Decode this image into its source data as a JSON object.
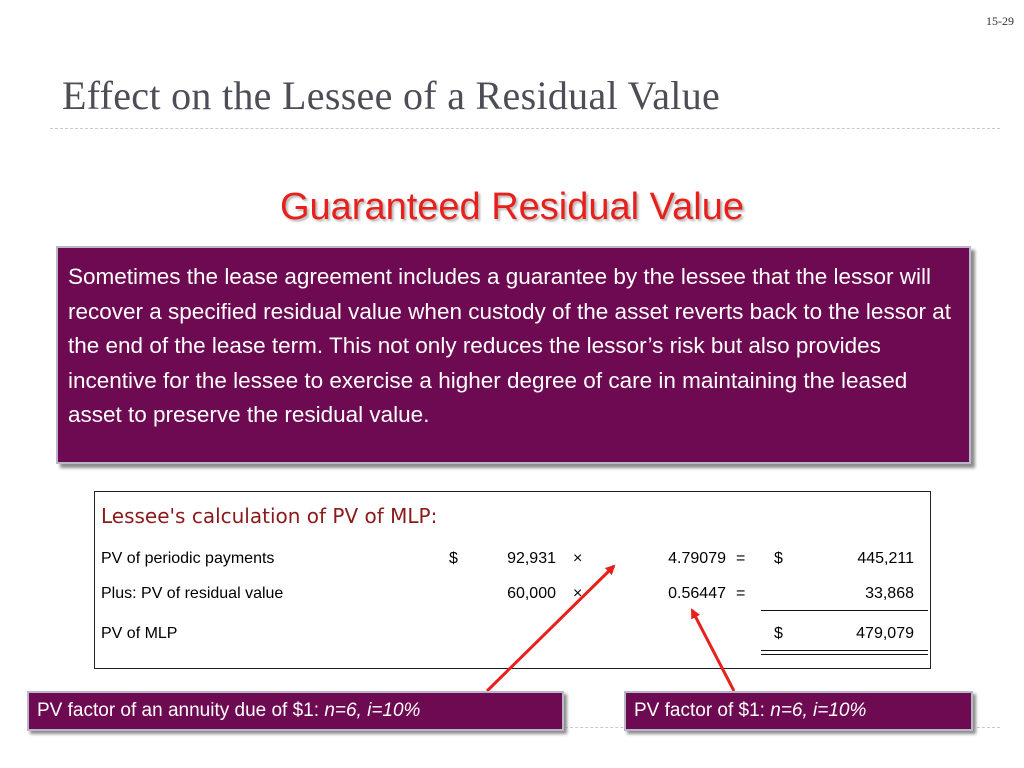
{
  "slide": {
    "number": "15-29",
    "title": "Effect on the Lessee of a Residual Value",
    "subheading": "Guaranteed Residual Value"
  },
  "definition": "Sometimes the lease agreement includes a guarantee by the lessee that the lessor will recover a specified residual value when custody of the asset reverts back to the lessor at the end of the lease term. This not only reduces the lessor’s risk but also provides incentive for the lessee to exercise a higher degree of care in maintaining the leased asset to preserve the residual value.",
  "calculation": {
    "heading": "Lessee's calculation of PV of MLP:",
    "rows": [
      {
        "label": "PV of periodic payments",
        "amount_sign": "$",
        "amount": "92,931",
        "op": "×",
        "factor": "4.79079",
        "eq": "=",
        "result_sign": "$",
        "result": "445,211"
      },
      {
        "label": "Plus: PV of residual value",
        "amount_sign": "",
        "amount": "60,000",
        "op": "×",
        "factor": "0.56447",
        "eq": "=",
        "result_sign": "",
        "result": "33,868"
      },
      {
        "label": "PV of MLP",
        "amount_sign": "",
        "amount": "",
        "op": "",
        "factor": "",
        "eq": "",
        "result_sign": "$",
        "result": "479,079"
      }
    ]
  },
  "callouts": {
    "annuity": {
      "prefix": "PV factor of an annuity due of $1: ",
      "params": "n=6, i=10%"
    },
    "single": {
      "prefix": "PV factor of $1: ",
      "params": "n=6, i=10%"
    }
  },
  "colors": {
    "box_fill": "#6e0a52",
    "subheading": "#e8201c",
    "arrow": "#e8201c",
    "table_heading": "#8b1a1a"
  }
}
